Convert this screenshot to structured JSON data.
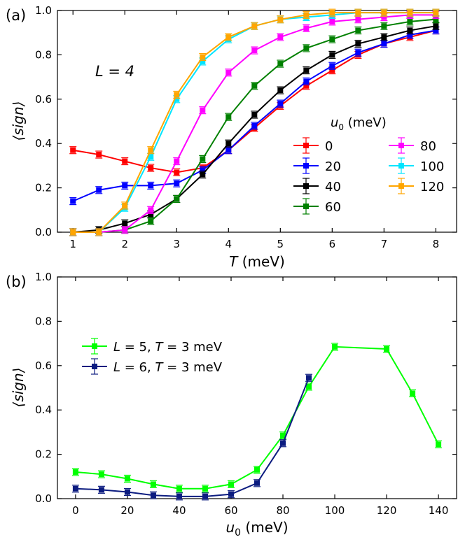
{
  "chart_data": [
    {
      "type": "line",
      "panel_label": "(a)",
      "annotation": "L = 4",
      "xlabel_italic": "T",
      "xlabel_rest": " (meV)",
      "ylabel": "⟨sign⟩",
      "xlim": [
        0.7,
        8.4
      ],
      "ylim": [
        0,
        1.0
      ],
      "xticks": [
        1,
        2,
        3,
        4,
        5,
        6,
        7,
        8
      ],
      "yticks": [
        0.0,
        0.2,
        0.4,
        0.6,
        0.8,
        1.0
      ],
      "ytick_labels": [
        "0.0",
        "0.2",
        "0.4",
        "0.6",
        "0.8",
        "1.0"
      ],
      "legend_title_italic": "u",
      "legend_title_sub": "0",
      "legend_title_rest": " (meV)",
      "x": [
        1,
        1.5,
        2,
        2.5,
        3,
        3.5,
        4,
        4.5,
        5,
        5.5,
        6,
        6.5,
        7,
        7.5,
        8
      ],
      "series": [
        {
          "name": "0",
          "color": "#ff0000",
          "values": [
            0.37,
            0.35,
            0.32,
            0.29,
            0.27,
            0.29,
            0.37,
            0.47,
            0.57,
            0.66,
            0.73,
            0.8,
            0.85,
            0.88,
            0.91
          ]
        },
        {
          "name": "20",
          "color": "#0000ff",
          "values": [
            0.14,
            0.19,
            0.21,
            0.21,
            0.22,
            0.28,
            0.37,
            0.48,
            0.58,
            0.68,
            0.75,
            0.81,
            0.85,
            0.89,
            0.91
          ]
        },
        {
          "name": "40",
          "color": "#000000",
          "values": [
            0.0,
            0.01,
            0.04,
            0.08,
            0.15,
            0.26,
            0.4,
            0.53,
            0.64,
            0.73,
            0.8,
            0.85,
            0.88,
            0.91,
            0.93
          ]
        },
        {
          "name": "60",
          "color": "#008000",
          "values": [
            0.0,
            0.0,
            0.01,
            0.05,
            0.15,
            0.33,
            0.52,
            0.66,
            0.76,
            0.83,
            0.87,
            0.91,
            0.93,
            0.95,
            0.96
          ]
        },
        {
          "name": "80",
          "color": "#ff00ff",
          "values": [
            0.0,
            0.0,
            0.01,
            0.1,
            0.32,
            0.55,
            0.72,
            0.82,
            0.88,
            0.92,
            0.95,
            0.96,
            0.97,
            0.98,
            0.98
          ]
        },
        {
          "name": "100",
          "color": "#00e5ff",
          "values": [
            0.0,
            0.0,
            0.11,
            0.34,
            0.6,
            0.77,
            0.87,
            0.93,
            0.96,
            0.97,
            0.98,
            0.99,
            0.99,
            0.99,
            0.99
          ]
        },
        {
          "name": "120",
          "color": "#ffa500",
          "values": [
            0.0,
            0.0,
            0.12,
            0.37,
            0.62,
            0.79,
            0.88,
            0.93,
            0.96,
            0.98,
            0.99,
            0.99,
            0.99,
            0.99,
            0.99
          ]
        }
      ]
    },
    {
      "type": "line",
      "panel_label": "(b)",
      "xlabel_italic": "u",
      "xlabel_sub": "0",
      "xlabel_rest": " (meV)",
      "ylabel": "⟨sign⟩",
      "xlim": [
        -7,
        147
      ],
      "ylim": [
        0,
        1.0
      ],
      "xticks": [
        0,
        20,
        40,
        60,
        80,
        100,
        120,
        140
      ],
      "yticks": [
        0.0,
        0.2,
        0.4,
        0.6,
        0.8,
        1.0
      ],
      "ytick_labels": [
        "0.0",
        "0.2",
        "0.4",
        "0.6",
        "0.8",
        "1.0"
      ],
      "series": [
        {
          "name": "L = 5, T = 3 meV",
          "name_parts": [
            "L",
            " = 5, ",
            "T",
            " = 3 meV"
          ],
          "color": "#00ff00",
          "x": [
            0,
            10,
            20,
            30,
            40,
            50,
            60,
            70,
            80,
            90,
            100,
            120,
            130,
            140
          ],
          "values": [
            0.12,
            0.11,
            0.09,
            0.065,
            0.045,
            0.045,
            0.065,
            0.13,
            0.285,
            0.505,
            0.685,
            0.675,
            0.475,
            0.245
          ]
        },
        {
          "name": "L = 6, T = 3 meV",
          "name_parts": [
            "L",
            " = 6, ",
            "T",
            " = 3 meV"
          ],
          "color": "#0c1c80",
          "x": [
            0,
            10,
            20,
            30,
            40,
            50,
            60,
            70,
            80,
            90
          ],
          "values": [
            0.045,
            0.04,
            0.03,
            0.015,
            0.01,
            0.01,
            0.02,
            0.07,
            0.25,
            0.545
          ]
        }
      ]
    }
  ]
}
